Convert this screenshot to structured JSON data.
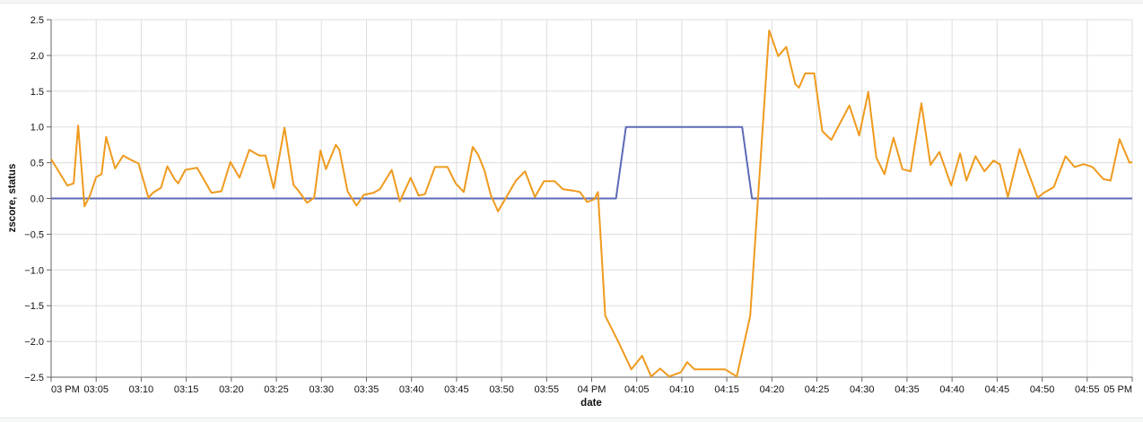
{
  "page": {
    "background": "#ffffff",
    "top_strip_color": "#f6f6f7",
    "bottom_strip_color": "#f7f8f8"
  },
  "chart_data": {
    "type": "line",
    "title": "",
    "xlabel": "date",
    "ylabel": "zscore, status",
    "x_start_label": "03 PM",
    "x_end_label": "05 PM",
    "xlim_minutes": [
      0,
      120
    ],
    "ylim": [
      -2.5,
      2.5
    ],
    "grid": true,
    "legend": "none",
    "grid_color": "#dddddd",
    "axis_color": "#666666",
    "label_color": "#111111",
    "x_ticks": [
      {
        "minute": 0,
        "label": "03 PM"
      },
      {
        "minute": 5,
        "label": "03:05"
      },
      {
        "minute": 10,
        "label": "03:10"
      },
      {
        "minute": 15,
        "label": "03:15"
      },
      {
        "minute": 20,
        "label": "03:20"
      },
      {
        "minute": 25,
        "label": "03:25"
      },
      {
        "minute": 30,
        "label": "03:30"
      },
      {
        "minute": 35,
        "label": "03:35"
      },
      {
        "minute": 40,
        "label": "03:40"
      },
      {
        "minute": 45,
        "label": "03:45"
      },
      {
        "minute": 50,
        "label": "03:50"
      },
      {
        "minute": 55,
        "label": "03:55"
      },
      {
        "minute": 60,
        "label": "04 PM"
      },
      {
        "minute": 65,
        "label": "04:05"
      },
      {
        "minute": 70,
        "label": "04:10"
      },
      {
        "minute": 75,
        "label": "04:15"
      },
      {
        "minute": 80,
        "label": "04:20"
      },
      {
        "minute": 85,
        "label": "04:25"
      },
      {
        "minute": 90,
        "label": "04:30"
      },
      {
        "minute": 95,
        "label": "04:35"
      },
      {
        "minute": 100,
        "label": "04:40"
      },
      {
        "minute": 105,
        "label": "04:45"
      },
      {
        "minute": 110,
        "label": "04:50"
      },
      {
        "minute": 115,
        "label": "04:55"
      },
      {
        "minute": 120,
        "label": "05 PM"
      }
    ],
    "y_ticks": [
      {
        "value": 2.5,
        "label": "2.5"
      },
      {
        "value": 2.0,
        "label": "2.0"
      },
      {
        "value": 1.5,
        "label": "1.5"
      },
      {
        "value": 1.0,
        "label": "1.0"
      },
      {
        "value": 0.5,
        "label": "0.5"
      },
      {
        "value": 0.0,
        "label": "0.0"
      },
      {
        "value": -0.5,
        "label": "−0.5"
      },
      {
        "value": -1.0,
        "label": "−1.0"
      },
      {
        "value": -1.5,
        "label": "−1.5"
      },
      {
        "value": -2.0,
        "label": "−2.0"
      },
      {
        "value": -2.5,
        "label": "−2.5"
      }
    ],
    "series": [
      {
        "name": "status",
        "color": "#5B6BB5",
        "stroke_width": 2,
        "points": [
          [
            0,
            0
          ],
          [
            62.7,
            0
          ],
          [
            63.8,
            1
          ],
          [
            76.7,
            1
          ],
          [
            77.8,
            0
          ],
          [
            120,
            0
          ]
        ]
      },
      {
        "name": "zscore",
        "color": "#EF9A1E",
        "stroke_width": 2,
        "points": [
          [
            0,
            0.55
          ],
          [
            1.8,
            0.18
          ],
          [
            2.5,
            0.21
          ],
          [
            3,
            1.02
          ],
          [
            3.7,
            -0.11
          ],
          [
            4.3,
            0.04
          ],
          [
            5,
            0.3
          ],
          [
            5.6,
            0.34
          ],
          [
            6.1,
            0.86
          ],
          [
            7.1,
            0.42
          ],
          [
            8,
            0.6
          ],
          [
            9,
            0.53
          ],
          [
            9.7,
            0.49
          ],
          [
            10.8,
            0.01
          ],
          [
            11.3,
            0.08
          ],
          [
            12.2,
            0.15
          ],
          [
            12.9,
            0.45
          ],
          [
            13.7,
            0.27
          ],
          [
            14.1,
            0.21
          ],
          [
            14.9,
            0.4
          ],
          [
            16.2,
            0.43
          ],
          [
            17.8,
            0.08
          ],
          [
            18.9,
            0.1
          ],
          [
            19.9,
            0.51
          ],
          [
            20.9,
            0.29
          ],
          [
            22,
            0.68
          ],
          [
            23.1,
            0.6
          ],
          [
            23.8,
            0.6
          ],
          [
            24.7,
            0.14
          ],
          [
            25.9,
            0.99
          ],
          [
            26.9,
            0.19
          ],
          [
            27.5,
            0.1
          ],
          [
            28.4,
            -0.06
          ],
          [
            29.2,
            0.01
          ],
          [
            29.9,
            0.67
          ],
          [
            30.5,
            0.41
          ],
          [
            31.6,
            0.75
          ],
          [
            32,
            0.68
          ],
          [
            32.9,
            0.1
          ],
          [
            33.9,
            -0.1
          ],
          [
            34.7,
            0.05
          ],
          [
            35.8,
            0.08
          ],
          [
            36.5,
            0.13
          ],
          [
            37.8,
            0.4
          ],
          [
            38.7,
            -0.04
          ],
          [
            39.9,
            0.29
          ],
          [
            40.8,
            0.04
          ],
          [
            41.5,
            0.06
          ],
          [
            42.6,
            0.44
          ],
          [
            44,
            0.44
          ],
          [
            44.9,
            0.21
          ],
          [
            45.8,
            0.09
          ],
          [
            46.8,
            0.72
          ],
          [
            47.4,
            0.61
          ],
          [
            48.1,
            0.39
          ],
          [
            48.8,
            0.05
          ],
          [
            49.6,
            -0.18
          ],
          [
            51.6,
            0.25
          ],
          [
            52.6,
            0.38
          ],
          [
            53.7,
            0.02
          ],
          [
            54.7,
            0.24
          ],
          [
            55.9,
            0.24
          ],
          [
            56.8,
            0.13
          ],
          [
            57.9,
            0.11
          ],
          [
            58.7,
            0.09
          ],
          [
            59.5,
            -0.05
          ],
          [
            60.3,
            -0.01
          ],
          [
            60.7,
            0.09
          ],
          [
            61.5,
            -1.64
          ],
          [
            62.9,
            -1.99
          ],
          [
            64.4,
            -2.39
          ],
          [
            65.6,
            -2.2
          ],
          [
            66.6,
            -2.49
          ],
          [
            67.6,
            -2.38
          ],
          [
            68.6,
            -2.49
          ],
          [
            69.9,
            -2.43
          ],
          [
            70.6,
            -2.29
          ],
          [
            71.4,
            -2.39
          ],
          [
            74.8,
            -2.39
          ],
          [
            76.1,
            -2.49
          ],
          [
            77.6,
            -1.64
          ],
          [
            79.7,
            2.35
          ],
          [
            80.7,
            1.99
          ],
          [
            81.6,
            2.12
          ],
          [
            82.6,
            1.6
          ],
          [
            83,
            1.55
          ],
          [
            83.7,
            1.75
          ],
          [
            84.7,
            1.75
          ],
          [
            85.6,
            0.94
          ],
          [
            86.6,
            0.82
          ],
          [
            88.6,
            1.3
          ],
          [
            89.7,
            0.88
          ],
          [
            90.7,
            1.49
          ],
          [
            91.6,
            0.57
          ],
          [
            92.5,
            0.34
          ],
          [
            93.5,
            0.85
          ],
          [
            94.5,
            0.41
          ],
          [
            95.4,
            0.38
          ],
          [
            96.6,
            1.33
          ],
          [
            97.6,
            0.47
          ],
          [
            98.6,
            0.65
          ],
          [
            99.9,
            0.18
          ],
          [
            100.9,
            0.63
          ],
          [
            101.6,
            0.25
          ],
          [
            102.6,
            0.59
          ],
          [
            103.6,
            0.38
          ],
          [
            104.6,
            0.53
          ],
          [
            105.3,
            0.48
          ],
          [
            106.2,
            0.02
          ],
          [
            107.5,
            0.69
          ],
          [
            109.5,
            0.01
          ],
          [
            110.2,
            0.08
          ],
          [
            111.3,
            0.16
          ],
          [
            112.6,
            0.59
          ],
          [
            113.6,
            0.44
          ],
          [
            114.6,
            0.48
          ],
          [
            115.6,
            0.44
          ],
          [
            116.8,
            0.27
          ],
          [
            117.6,
            0.25
          ],
          [
            118.6,
            0.83
          ],
          [
            119.7,
            0.5
          ],
          [
            120,
            0.51
          ]
        ]
      }
    ]
  }
}
